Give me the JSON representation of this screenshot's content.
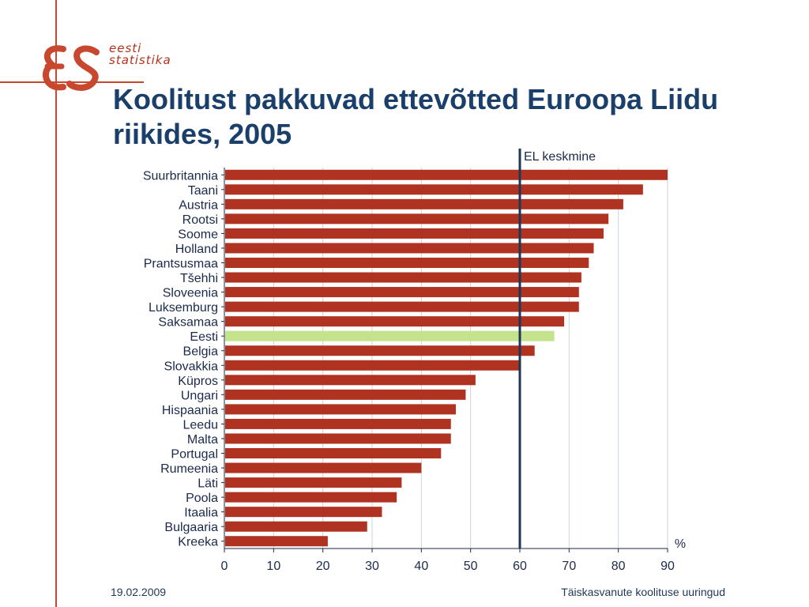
{
  "logo": {
    "line1": "eesti",
    "line2": "statistika",
    "mark": "es-logo-mark"
  },
  "title": "Koolitust pakkuvad ettevõtted Euroopa Liidu riikides, 2005",
  "footer": {
    "date": "19.02.2009",
    "source": "Täiskasvanute koolituse uuringud"
  },
  "colors": {
    "bar": "#b03321",
    "highlight": "#c5e38d",
    "title": "#1a3f6b",
    "reference_line": "#1f3657",
    "accent": "#c8472f"
  },
  "chart_data": {
    "type": "bar",
    "orientation": "horizontal",
    "categories": [
      "Suurbritannia",
      "Taani",
      "Austria",
      "Rootsi",
      "Soome",
      "Holland",
      "Prantsusmaa",
      "Tšehhi",
      "Sloveenia",
      "Luksemburg",
      "Saksamaa",
      "Eesti",
      "Belgia",
      "Slovakkia",
      "Küpros",
      "Ungari",
      "Hispaania",
      "Leedu",
      "Malta",
      "Portugal",
      "Rumeenia",
      "Läti",
      "Poola",
      "Itaalia",
      "Bulgaaria",
      "Kreeka"
    ],
    "values": [
      90,
      85,
      81,
      78,
      77,
      75,
      74,
      72.5,
      72,
      72,
      69,
      67,
      63,
      60,
      51,
      49,
      47,
      46,
      46,
      44,
      40,
      36,
      35,
      32,
      29,
      21
    ],
    "highlight": "Eesti",
    "xlim": [
      0,
      90
    ],
    "xticks": [
      "0",
      "10",
      "20",
      "30",
      "40",
      "50",
      "60",
      "70",
      "80",
      "90"
    ],
    "xunit_label": "%",
    "reference_line": {
      "value": 60,
      "label": "EL keskmine"
    },
    "grid": "vertical"
  }
}
